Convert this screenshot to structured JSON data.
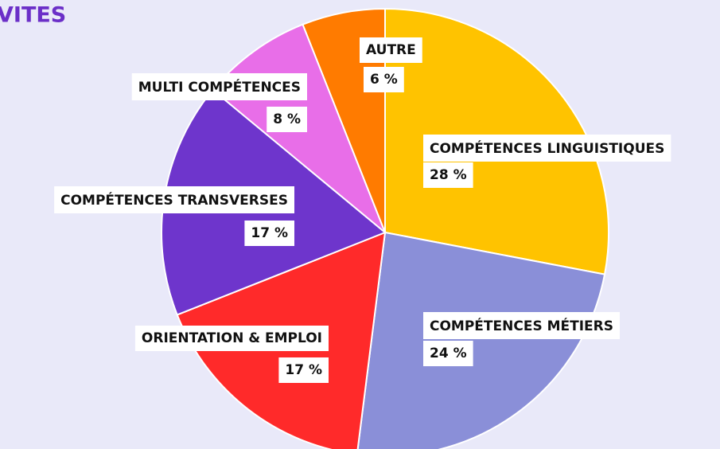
{
  "chart_data": {
    "type": "pie",
    "title": "VITES",
    "categories": [
      "COMPÉTENCES LINGUISTIQUES",
      "COMPÉTENCES MÉTIERS",
      "ORIENTATION & EMPLOI",
      "COMPÉTENCES TRANSVERSES",
      "MULTI COMPÉTENCES",
      "AUTRE"
    ],
    "values": [
      28,
      24,
      17,
      17,
      8,
      6
    ],
    "value_labels": [
      "28 %",
      "24 %",
      "17 %",
      "17 %",
      "8 %",
      "6 %"
    ],
    "colors": [
      "#ffc300",
      "#8a8fd8",
      "#ff2a2a",
      "#6e35cc",
      "#e86ee8",
      "#ff7b00"
    ]
  }
}
